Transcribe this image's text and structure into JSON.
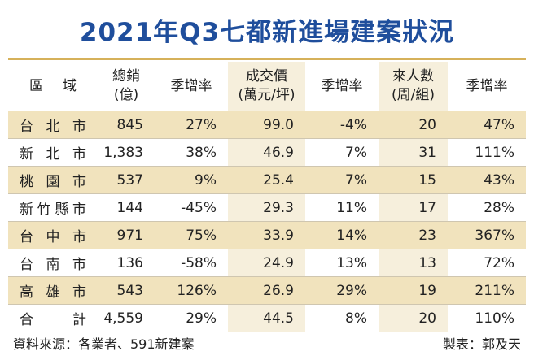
{
  "header": {
    "title": "2021年Q3七都新進場建案狀況"
  },
  "table": {
    "columns": [
      "區　域",
      "總銷\n(億)",
      "季增率",
      "成交價\n(萬元/坪)",
      "季增率",
      "來人數\n(周/組)",
      "季增率"
    ],
    "rows": [
      [
        "台北市",
        "845",
        "27%",
        "99.0",
        "-4%",
        "20",
        "47%"
      ],
      [
        "新北市",
        "1,383",
        "38%",
        "46.9",
        "7%",
        "31",
        "111%"
      ],
      [
        "桃園市",
        "537",
        "9%",
        "25.4",
        "7%",
        "15",
        "43%"
      ],
      [
        "新竹縣市",
        "144",
        "-45%",
        "29.3",
        "11%",
        "17",
        "28%"
      ],
      [
        "台中市",
        "971",
        "75%",
        "33.9",
        "14%",
        "23",
        "367%"
      ],
      [
        "台南市",
        "136",
        "-58%",
        "24.9",
        "13%",
        "13",
        "72%"
      ],
      [
        "高雄市",
        "543",
        "126%",
        "26.9",
        "29%",
        "19",
        "211%"
      ],
      [
        "合計",
        "4,559",
        "29%",
        "44.5",
        "8%",
        "20",
        "110%"
      ]
    ]
  },
  "footer": {
    "source": "資料來源：各業者、591新建案",
    "author": "製表：郭及天"
  }
}
